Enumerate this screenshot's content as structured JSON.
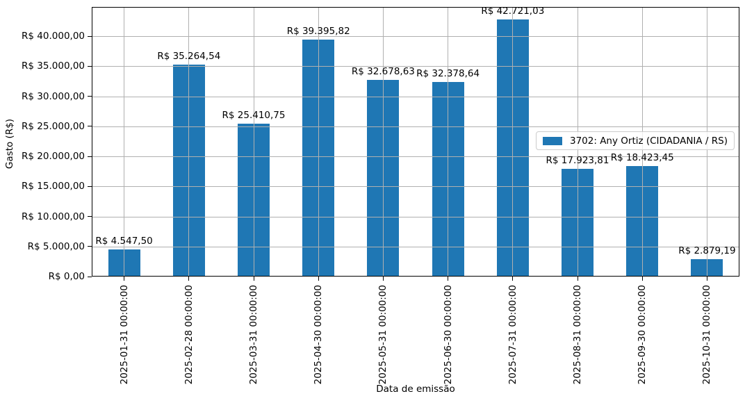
{
  "chart_data": {
    "type": "bar",
    "title": "",
    "xlabel": "Data de emissão",
    "ylabel": "Gasto (R$)",
    "categories": [
      "2025-01-31 00:00:00",
      "2025-02-28 00:00:00",
      "2025-03-31 00:00:00",
      "2025-04-30 00:00:00",
      "2025-05-31 00:00:00",
      "2025-06-30 00:00:00",
      "2025-07-31 00:00:00",
      "2025-08-31 00:00:00",
      "2025-09-30 00:00:00",
      "2025-10-31 00:00:00"
    ],
    "values": [
      4547.5,
      35264.54,
      25410.75,
      39395.82,
      32678.63,
      32378.64,
      42721.03,
      17923.81,
      18423.45,
      2879.19
    ],
    "bar_labels": [
      "R$ 4.547,50",
      "R$ 35.264,54",
      "R$ 25.410,75",
      "R$ 39.395,82",
      "R$ 32.678,63",
      "R$ 32.378,64",
      "R$ 42.721,03",
      "R$ 17.923,81",
      "R$ 18.423,45",
      "R$ 2.879,19"
    ],
    "yticks": {
      "values": [
        0,
        5000,
        10000,
        15000,
        20000,
        25000,
        30000,
        35000,
        40000
      ],
      "labels": [
        "R$ 0,00",
        "R$ 5.000,00",
        "R$ 10.000,00",
        "R$ 15.000,00",
        "R$ 20.000,00",
        "R$ 25.000,00",
        "R$ 30.000,00",
        "R$ 35.000,00",
        "R$ 40.000,00"
      ]
    },
    "ylim": [
      0,
      44857
    ],
    "grid": true,
    "legend": {
      "label": "3702: Any Ortiz (CIDADANIA / RS)",
      "position": "center right"
    },
    "colors": {
      "bar": "#1f77b4",
      "grid": "#b0b0b0",
      "spine": "#000000",
      "text": "#000000",
      "legend_border": "#cccccc"
    }
  }
}
